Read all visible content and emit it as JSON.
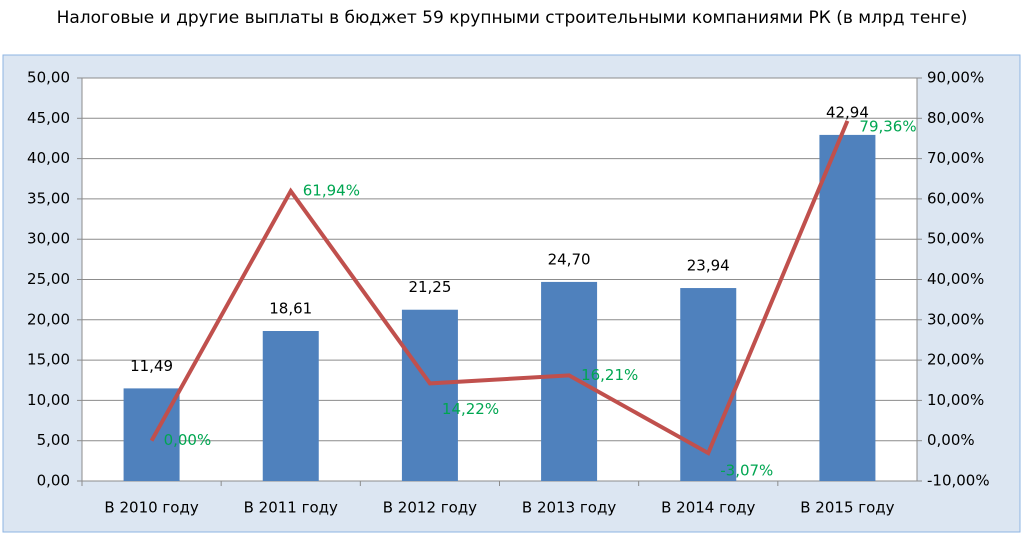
{
  "chart_data": {
    "type": "bar",
    "title": "Налоговые и другие выплаты в бюджет 59 крупными строительными компаниями РК (в млрд тенге)",
    "categories": [
      "В 2010 году",
      "В 2011 году",
      "В 2012 году",
      "В 2013 году",
      "В 2014 году",
      "В 2015 году"
    ],
    "series": [
      {
        "type": "bar",
        "color": "#4f81bd",
        "values": [
          11.49,
          18.61,
          21.25,
          24.7,
          23.94,
          42.94
        ],
        "value_labels": [
          "11,49",
          "18,61",
          "21,25",
          "24,70",
          "23,94",
          "42,94"
        ]
      },
      {
        "type": "line",
        "axis": "y2",
        "color": "#c0504d",
        "values": [
          0.0,
          61.94,
          14.22,
          16.21,
          -3.07,
          79.36
        ],
        "value_labels": [
          "0,00%",
          "61,94%",
          "14,22%",
          "16,21%",
          "-3,07%",
          "79,36%"
        ]
      }
    ],
    "ylim": [
      0,
      50
    ],
    "yticks": [
      {
        "value": 0,
        "label": "0,00"
      },
      {
        "value": 5,
        "label": "5,00"
      },
      {
        "value": 10,
        "label": "10,00"
      },
      {
        "value": 15,
        "label": "15,00"
      },
      {
        "value": 20,
        "label": "20,00"
      },
      {
        "value": 25,
        "label": "25,00"
      },
      {
        "value": 30,
        "label": "30,00"
      },
      {
        "value": 35,
        "label": "35,00"
      },
      {
        "value": 40,
        "label": "40,00"
      },
      {
        "value": 45,
        "label": "45,00"
      },
      {
        "value": 50,
        "label": "50,00"
      }
    ],
    "y2lim": [
      -10,
      90
    ],
    "y2ticks": [
      {
        "value": -10,
        "label": "-10,00%"
      },
      {
        "value": 0,
        "label": "0,00%"
      },
      {
        "value": 10,
        "label": "10,00%"
      },
      {
        "value": 20,
        "label": "20,00%"
      },
      {
        "value": 30,
        "label": "30,00%"
      },
      {
        "value": 40,
        "label": "40,00%"
      },
      {
        "value": 50,
        "label": "50,00%"
      },
      {
        "value": 60,
        "label": "60,00%"
      },
      {
        "value": 70,
        "label": "70,00%"
      },
      {
        "value": 80,
        "label": "80,00%"
      },
      {
        "value": 90,
        "label": "90,00%"
      }
    ],
    "grid": true
  }
}
